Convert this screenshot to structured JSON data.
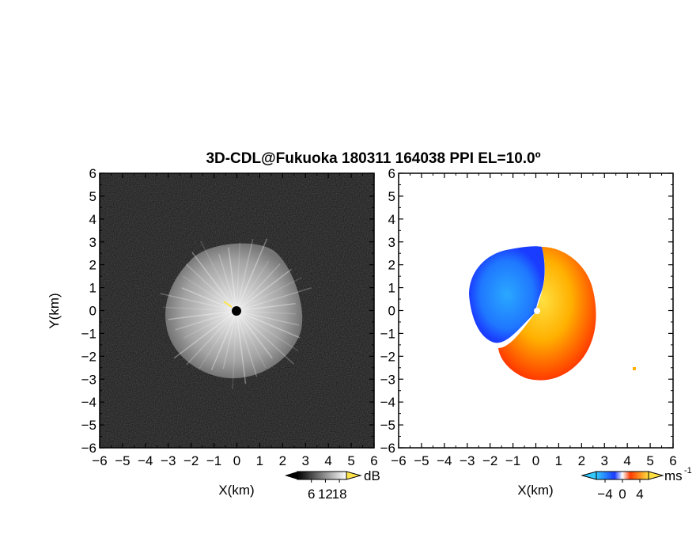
{
  "chart_data": [
    {
      "type": "heatmap",
      "panel": "reflectivity",
      "title": "3D-CDL@Fukuoka 180311 164038 PPI EL=10.0º",
      "xlabel": "X(km)",
      "ylabel": "Y(km)",
      "xlim": [
        -6,
        6
      ],
      "ylim": [
        -6,
        6
      ],
      "x_ticks": [
        "-6",
        "-5",
        "-4",
        "-3",
        "-2",
        "-1",
        "0",
        "1",
        "2",
        "3",
        "4",
        "5",
        "6"
      ],
      "y_ticks": [
        "-6",
        "-5",
        "-4",
        "-3",
        "-2",
        "-1",
        "0",
        "1",
        "2",
        "3",
        "4",
        "5",
        "6"
      ],
      "colormap": "grayscale",
      "colorbar": {
        "ticks": [
          "6",
          "12",
          "18"
        ],
        "tick_values": [
          6,
          12,
          18
        ],
        "unit": "dB",
        "range": [
          0,
          21
        ]
      },
      "echo_region": {
        "center": [
          0,
          0
        ],
        "approx_radius_km": 3,
        "extent_km": {
          "x": [
            -3.2,
            2.9
          ],
          "y": [
            -3.0,
            3.1
          ]
        }
      }
    },
    {
      "type": "heatmap",
      "panel": "doppler_velocity",
      "xlabel": "X(km)",
      "xlim": [
        -6,
        6
      ],
      "ylim": [
        -6,
        6
      ],
      "x_ticks": [
        "-6",
        "-5",
        "-4",
        "-3",
        "-2",
        "-1",
        "0",
        "1",
        "2",
        "3",
        "4",
        "5",
        "6"
      ],
      "y_ticks": [
        "-6",
        "-5",
        "-4",
        "-3",
        "-2",
        "-1",
        "0",
        "1",
        "2",
        "3",
        "4",
        "5",
        "6"
      ],
      "colormap": "blue-white-orange",
      "colorbar": {
        "ticks": [
          "-4",
          "0",
          "4"
        ],
        "tick_values": [
          -4,
          0,
          4
        ],
        "unit": "ms",
        "unit_sup": "-1",
        "range": [
          -6,
          6
        ]
      },
      "pattern": {
        "negative_side": "west (x<0), centered near (-1.5, 0.5)",
        "positive_side": "east (x>0), centered near (1.2, -1.0)",
        "extent_km": {
          "x": [
            -3.0,
            2.9
          ],
          "y": [
            -3.4,
            3.0
          ]
        }
      }
    }
  ],
  "colors": {
    "background": "#ffffff",
    "axis": "#000000",
    "neg_dark": "#1a3cff",
    "neg_light": "#2aa8ff",
    "pos_light": "#ffd21a",
    "pos_dark": "#ff3a00",
    "marker": "#000000"
  }
}
